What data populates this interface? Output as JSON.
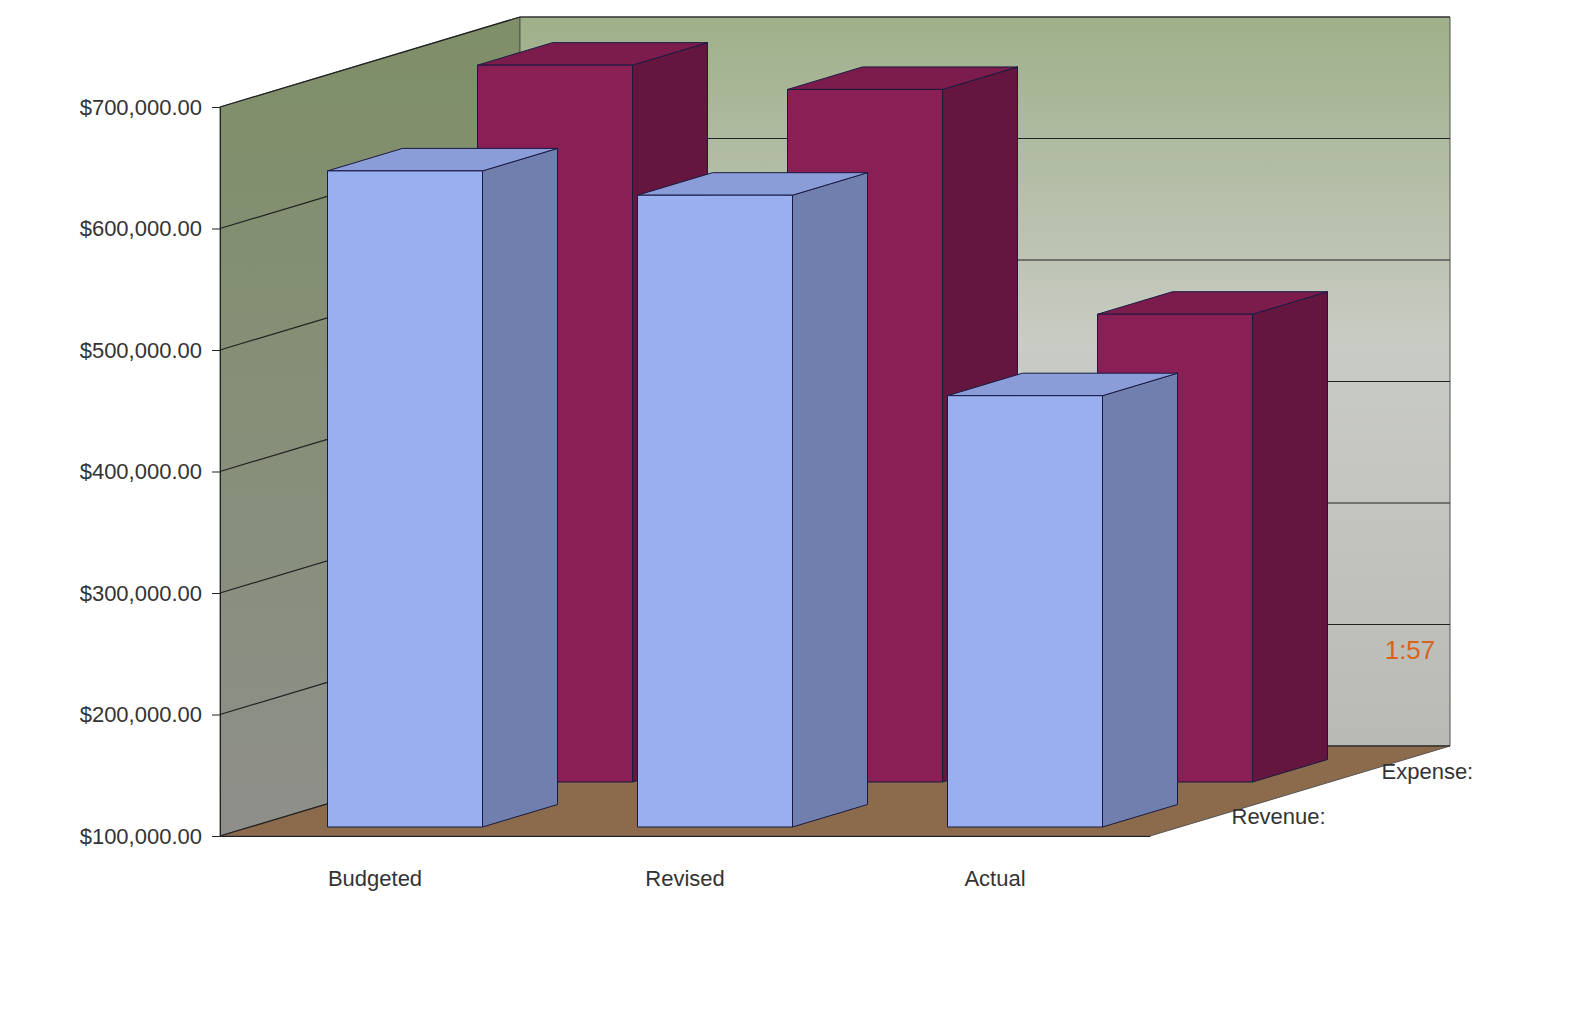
{
  "chart_data": {
    "type": "bar",
    "categories": [
      "Budgeted",
      "Revised",
      "Actual"
    ],
    "series": [
      {
        "name": "Revenue:",
        "color": "#9aaff0",
        "values": [
          640000,
          620000,
          455000
        ]
      },
      {
        "name": "Expense:",
        "color": "#8a1f55",
        "values": [
          690000,
          670000,
          485000
        ]
      }
    ],
    "ylim": [
      100000,
      700000
    ],
    "yticks": [
      {
        "value": 100000,
        "label": "$100,000.00"
      },
      {
        "value": 200000,
        "label": "$200,000.00"
      },
      {
        "value": 300000,
        "label": "$300,000.00"
      },
      {
        "value": 400000,
        "label": "$400,000.00"
      },
      {
        "value": 500000,
        "label": "$500,000.00"
      },
      {
        "value": 600000,
        "label": "$600,000.00"
      },
      {
        "value": 700000,
        "label": "$700,000.00"
      }
    ],
    "grid": true,
    "annotations": [
      "1:57"
    ]
  }
}
